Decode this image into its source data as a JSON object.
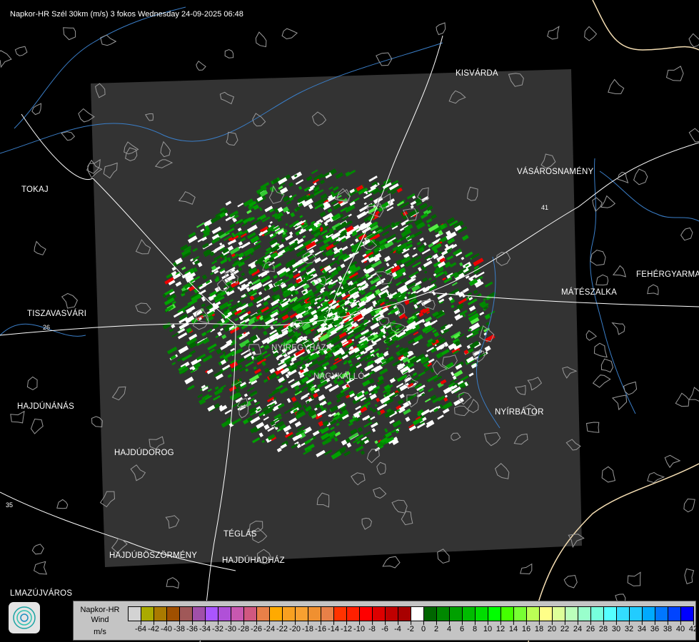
{
  "title": "Napkor-HR Szél 30km (m/s) 3 fokos Wednesday 24-09-2025 06:48",
  "cities": [
    {
      "name": "KISVÁRDA"
    },
    {
      "name": "VÁSÁROSNAMÉNY"
    },
    {
      "name": "TOKAJ"
    },
    {
      "name": "FEHÉRGYARMAT"
    },
    {
      "name": "MÁTÉSZALKA"
    },
    {
      "name": "TISZAVASVÁRI"
    },
    {
      "name": "HAJDÚNÁNÁS"
    },
    {
      "name": "NYÍRBÁTOR"
    },
    {
      "name": "HAJDÚDOROG"
    },
    {
      "name": "TÉGLÁS"
    },
    {
      "name": "HAJDÚBÖSZÖRMÉNY"
    },
    {
      "name": "HAJDÚHADHÁZ"
    },
    {
      "name": "NYÍREGYHÁZA"
    },
    {
      "name": "NAGYKÁLLÓ"
    },
    {
      "name": "LMAZÚJVÁROS"
    }
  ],
  "roads": [
    "26",
    "35",
    "41"
  ],
  "legend": {
    "line1": "Napkor-HR",
    "line2": "Wind",
    "line3": "m/s",
    "colors": [
      "#d3d3d3",
      "#aaaa00",
      "#aa7a00",
      "#a05000",
      "#a05858",
      "#a050a8",
      "#aa55ff",
      "#b050d8",
      "#c858b0",
      "#d05880",
      "#e88048",
      "#ffaa00",
      "#f8a020",
      "#f8a030",
      "#f09030",
      "#e88048",
      "#ff3300",
      "#ff2000",
      "#ff0000",
      "#dd0000",
      "#c00000",
      "#a80000",
      "#ffffff",
      "#006600",
      "#008800",
      "#00a000",
      "#00bb00",
      "#00dd00",
      "#00ff00",
      "#44ff00",
      "#77ff33",
      "#bbff55",
      "#ffff88",
      "#ddff99",
      "#bbffbb",
      "#99ffcc",
      "#77ffdd",
      "#55ffff",
      "#33ddff",
      "#22ccff",
      "#00aaff",
      "#0077ff",
      "#0044ff",
      "#0000ff"
    ],
    "ticks": [
      "-64",
      "-42",
      "-40",
      "-38",
      "-36",
      "-34",
      "-32",
      "-30",
      "-28",
      "-26",
      "-24",
      "-22",
      "-20",
      "-18",
      "-16",
      "-14",
      "-12",
      "-10",
      "-8",
      "-6",
      "-4",
      "-2",
      "0",
      "2",
      "4",
      "6",
      "8",
      "10",
      "12",
      "14",
      "16",
      "18",
      "20",
      "22",
      "24",
      "26",
      "28",
      "30",
      "32",
      "34",
      "36",
      "38",
      "40",
      "42"
    ]
  },
  "colors": {
    "radar_area": "#333333",
    "river": "#3a7ec8",
    "border": "#f5deb3",
    "outline": "#9a9a9a"
  }
}
